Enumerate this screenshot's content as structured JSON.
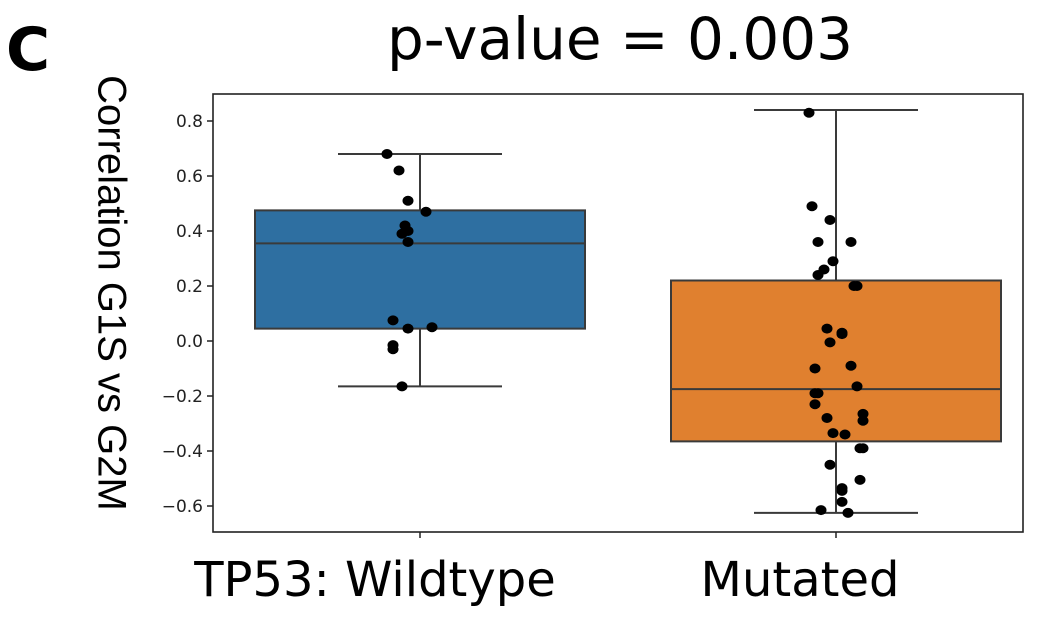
{
  "panel_label": "C",
  "chart_data": {
    "type": "box",
    "title": "p-value = 0.003",
    "ylabel": "Correlation G1S vs G2M",
    "xlabel": "",
    "categories": [
      "TP53: Wildtype",
      "Mutated"
    ],
    "ylim": [
      -0.7,
      0.9
    ],
    "yticks": [
      -0.6,
      -0.4,
      -0.2,
      0.0,
      0.2,
      0.4,
      0.6,
      0.8
    ],
    "ytick_labels": [
      "−0.6",
      "−0.4",
      "−0.2",
      "0.0",
      "0.2",
      "0.4",
      "0.6",
      "0.8"
    ],
    "grid": false,
    "boxes": [
      {
        "category": "TP53: Wildtype",
        "color": "#2e6fa1",
        "whisker_low": -0.165,
        "q1": 0.045,
        "median": 0.355,
        "q3": 0.475,
        "whisker_high": 0.68,
        "points": [
          0.68,
          0.62,
          0.51,
          0.47,
          0.42,
          0.4,
          0.39,
          0.36,
          0.075,
          0.05,
          0.045,
          -0.015,
          -0.03,
          -0.165
        ],
        "jitter": [
          -0.11,
          -0.07,
          -0.04,
          0.02,
          -0.05,
          -0.04,
          -0.06,
          -0.04,
          -0.09,
          0.04,
          -0.04,
          -0.09,
          -0.09,
          -0.06
        ]
      },
      {
        "category": "Mutated",
        "color": "#e0802f",
        "whisker_low": -0.625,
        "q1": -0.365,
        "median": -0.175,
        "q3": 0.22,
        "whisker_high": 0.84,
        "points": [
          0.83,
          0.49,
          0.44,
          0.36,
          0.36,
          0.29,
          0.26,
          0.24,
          0.2,
          0.2,
          0.045,
          0.03,
          0.025,
          -0.005,
          -0.09,
          -0.1,
          -0.165,
          -0.19,
          -0.19,
          -0.23,
          -0.265,
          -0.28,
          -0.29,
          -0.335,
          -0.34,
          -0.39,
          -0.39,
          -0.45,
          -0.505,
          -0.535,
          -0.545,
          -0.585,
          -0.615,
          -0.625
        ],
        "jitter": [
          -0.09,
          -0.08,
          -0.02,
          -0.06,
          0.05,
          -0.01,
          -0.04,
          -0.06,
          0.06,
          0.07,
          -0.03,
          0.02,
          0.02,
          -0.02,
          0.05,
          -0.07,
          0.07,
          -0.07,
          -0.06,
          -0.07,
          0.09,
          -0.03,
          0.09,
          -0.01,
          0.03,
          0.08,
          0.09,
          -0.02,
          0.08,
          0.02,
          0.02,
          0.02,
          -0.05,
          0.04
        ]
      }
    ]
  }
}
